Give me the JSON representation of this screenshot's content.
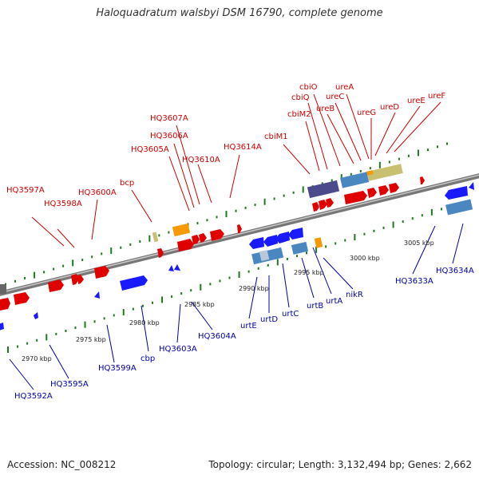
{
  "title": "Haloquadratum walsbyi DSM 16790, complete genome",
  "footer": {
    "accession": "Accession: NC_008212",
    "summary": "Topology: circular; Length: 3,132,494 bp; Genes: 2,662"
  },
  "colors": {
    "backbone": "#8a8a8a",
    "top_label": "#cc0000",
    "bottom_label": "#0000aa",
    "tick": "#1f7a1f",
    "forward_gene": "#ff0000",
    "reverse_gene": "#1a1aff",
    "rna_gene": "#ff9900",
    "pseudo_gene": "#c8c070",
    "operon_dark": "#4b4a8c",
    "operon_blue": "#4a86c0"
  },
  "top_labels": [
    "HQ3597A",
    "HQ3598A",
    "HQ3600A",
    "bcp",
    "HQ3605A",
    "HQ3606A",
    "HQ3607A",
    "HQ3610A",
    "HQ3614A",
    "cbiM1",
    "cbiM2",
    "cbiQ",
    "cbiO",
    "ureB",
    "ureC",
    "ureA",
    "ureG",
    "ureD",
    "ureE",
    "ureF"
  ],
  "bottom_labels": [
    "HQ3592A",
    "HQ3595A",
    "HQ3599A",
    "cbp",
    "HQ3603A",
    "HQ3604A",
    "urtE",
    "urtD",
    "urtC",
    "urtB",
    "urtA",
    "nikR",
    "HQ3633A",
    "HQ3634A"
  ],
  "scale_labels": [
    "2970 kbp",
    "2975 kbp",
    "2980 kbp",
    "2985 kbp",
    "2990 kbp",
    "2995 kbp",
    "3000 kbp",
    "3005 kbp"
  ]
}
